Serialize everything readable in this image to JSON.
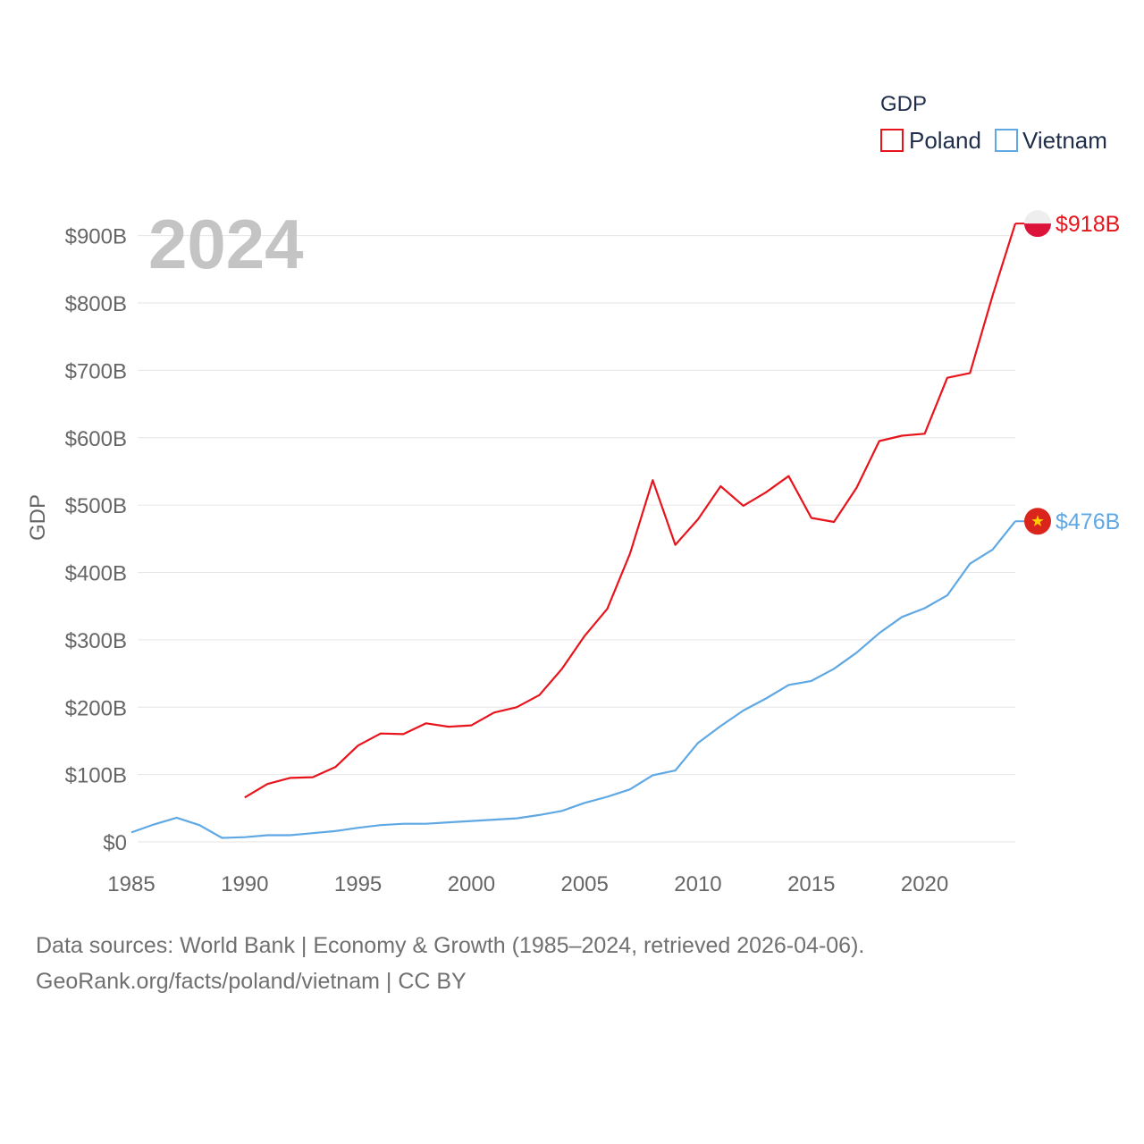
{
  "chart_data": {
    "type": "line",
    "title": "GDP",
    "ylabel": "GDP",
    "xlabel": "",
    "year_label": "2024",
    "xlim": [
      1985,
      2024
    ],
    "ylim": [
      0,
      950
    ],
    "x_ticks": [
      1985,
      1990,
      1995,
      2000,
      2005,
      2010,
      2015,
      2020
    ],
    "x_tick_labels": [
      "1985",
      "1990",
      "1995",
      "2000",
      "2005",
      "2010",
      "2015",
      "2020"
    ],
    "y_ticks": [
      0,
      100,
      200,
      300,
      400,
      500,
      600,
      700,
      800,
      900
    ],
    "y_tick_labels": [
      "$0",
      "$100B",
      "$200B",
      "$300B",
      "$400B",
      "$500B",
      "$600B",
      "$700B",
      "$800B",
      "$900B"
    ],
    "grid": true,
    "legend_position": "top-right",
    "legend_title": "GDP",
    "series": [
      {
        "name": "Poland",
        "color": "#e8141c",
        "end_label": "$918B",
        "flag_icon": "poland-flag-icon",
        "x": [
          1990,
          1991,
          1992,
          1993,
          1994,
          1995,
          1996,
          1997,
          1998,
          1999,
          2000,
          2001,
          2002,
          2003,
          2004,
          2005,
          2006,
          2007,
          2008,
          2009,
          2010,
          2011,
          2012,
          2013,
          2014,
          2015,
          2016,
          2017,
          2018,
          2019,
          2020,
          2021,
          2022,
          2023,
          2024
        ],
        "values": [
          66,
          86,
          95,
          96,
          111,
          143,
          161,
          160,
          176,
          171,
          173,
          192,
          200,
          218,
          257,
          306,
          346,
          428,
          537,
          441,
          479,
          528,
          499,
          519,
          543,
          481,
          475,
          526,
          595,
          603,
          606,
          689,
          696,
          811,
          918
        ]
      },
      {
        "name": "Vietnam",
        "color": "#5fa8e4",
        "end_label": "$476B",
        "flag_icon": "vietnam-flag-icon",
        "x": [
          1985,
          1986,
          1987,
          1988,
          1989,
          1990,
          1991,
          1992,
          1993,
          1994,
          1995,
          1996,
          1997,
          1998,
          1999,
          2000,
          2001,
          2002,
          2003,
          2004,
          2005,
          2006,
          2007,
          2008,
          2009,
          2010,
          2011,
          2012,
          2013,
          2014,
          2015,
          2016,
          2017,
          2018,
          2019,
          2020,
          2021,
          2022,
          2023,
          2024
        ],
        "values": [
          14,
          26,
          36,
          25,
          6,
          7,
          10,
          10,
          13,
          16,
          21,
          25,
          27,
          27,
          29,
          31,
          33,
          35,
          40,
          46,
          58,
          67,
          78,
          99,
          106,
          147,
          172,
          195,
          213,
          233,
          239,
          257,
          281,
          310,
          334,
          347,
          366,
          413,
          434,
          476
        ]
      }
    ]
  },
  "footer": {
    "line1": "Data sources: World Bank | Economy & Growth (1985–2024, retrieved 2026-04-06).",
    "line2": "GeoRank.org/facts/poland/vietnam | CC BY"
  }
}
